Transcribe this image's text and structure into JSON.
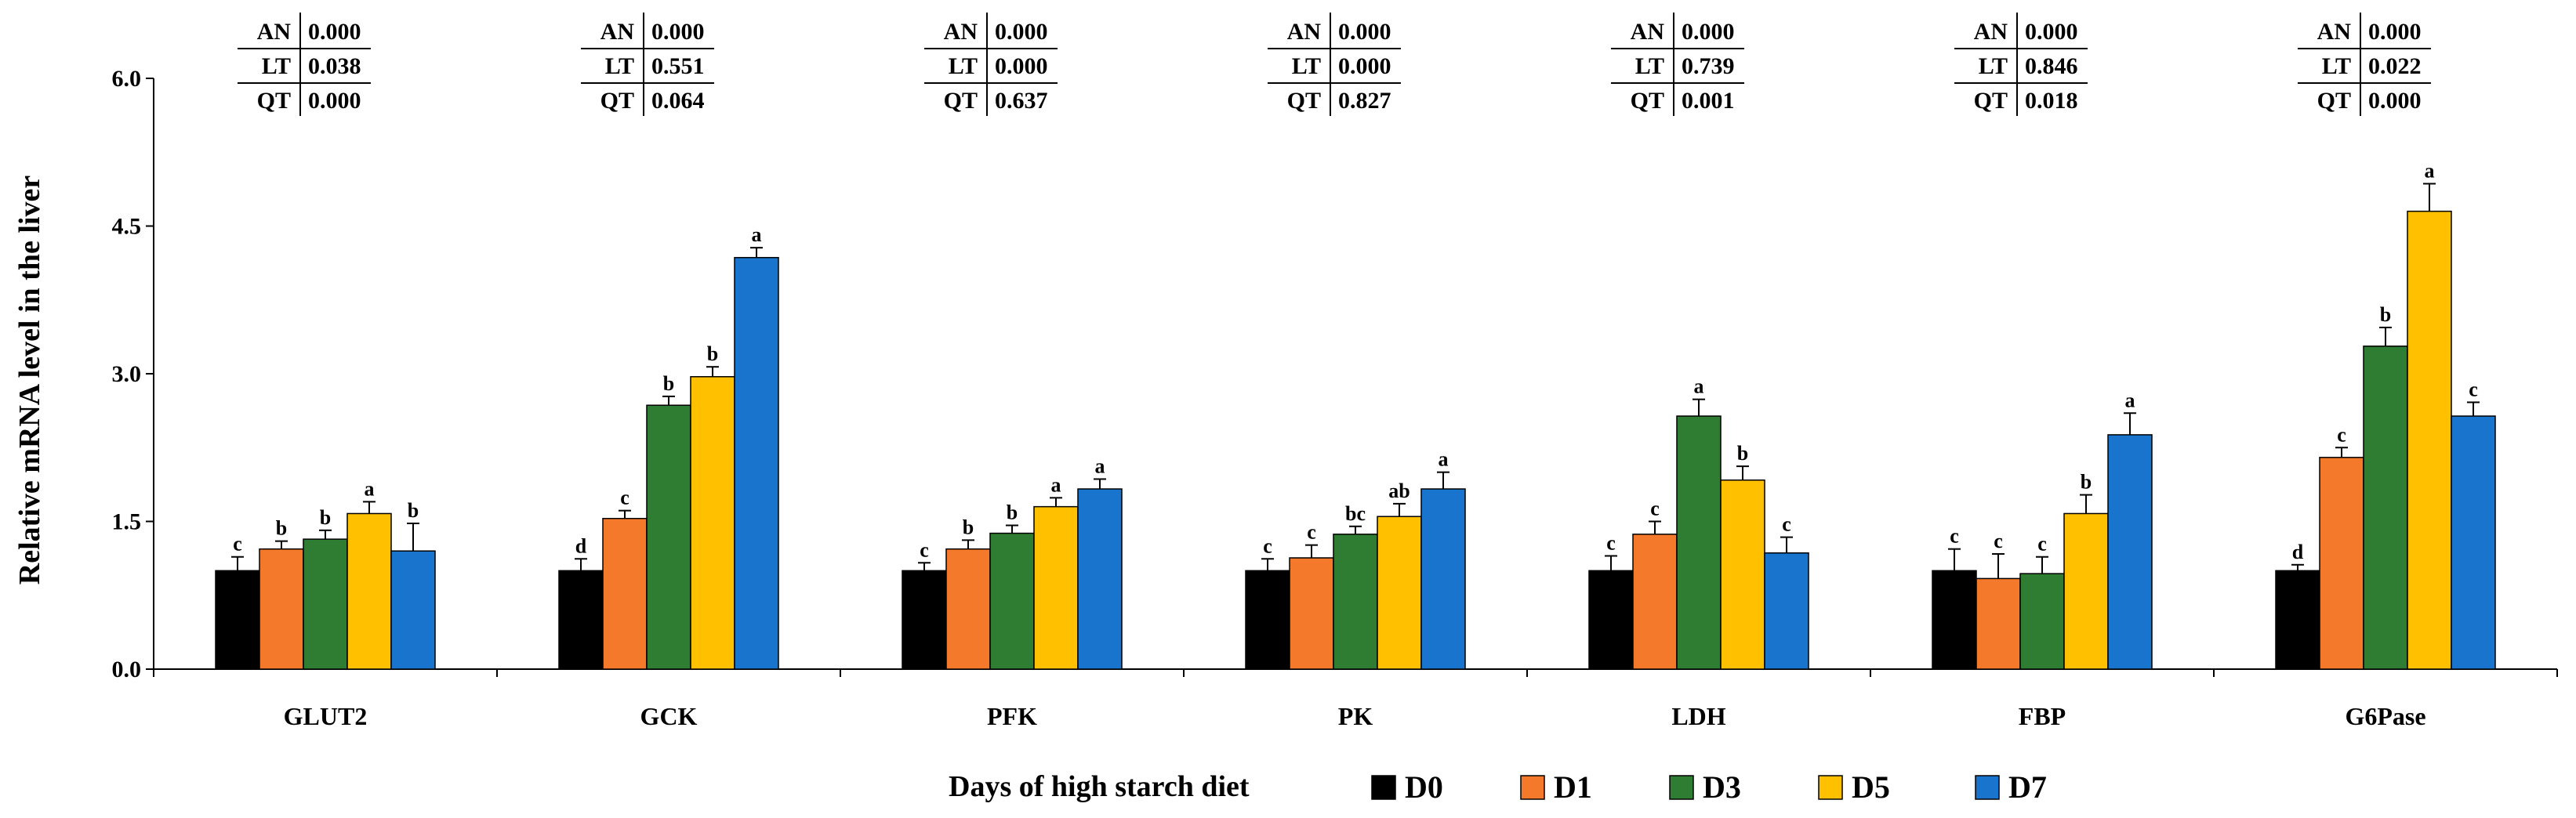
{
  "chart_data": {
    "type": "bar",
    "title": "",
    "ylabel": "Relative mRNA level  in the liver",
    "xlabel": "",
    "ylim": [
      0,
      6.0
    ],
    "yticks": [
      "0.0",
      "1.5",
      "3.0",
      "4.5",
      "6.0"
    ],
    "ytick_values": [
      0,
      1.5,
      3.0,
      4.5,
      6.0
    ],
    "grid": false,
    "legend_title": "Days of high starch diet",
    "legend_position": "bottom",
    "categories": [
      "GLUT2",
      "GCK",
      "PFK",
      "PK",
      "LDH",
      "FBP",
      "G6Pase"
    ],
    "series": [
      {
        "name": "D0",
        "color": "#000000",
        "values": [
          1.0,
          1.0,
          1.0,
          1.0,
          1.0,
          1.0,
          1.0
        ],
        "errors": [
          0.14,
          0.12,
          0.08,
          0.12,
          0.15,
          0.22,
          0.06
        ],
        "letters": [
          "c",
          "d",
          "c",
          "c",
          "c",
          "c",
          "d"
        ]
      },
      {
        "name": "D1",
        "color": "#F5792A",
        "values": [
          1.22,
          1.53,
          1.22,
          1.13,
          1.37,
          0.92,
          2.15
        ],
        "errors": [
          0.08,
          0.08,
          0.09,
          0.13,
          0.13,
          0.25,
          0.1
        ],
        "letters": [
          "b",
          "c",
          "b",
          "c",
          "c",
          "c",
          "c"
        ]
      },
      {
        "name": "D3",
        "color": "#2E7D32",
        "values": [
          1.32,
          2.68,
          1.38,
          1.37,
          2.57,
          0.97,
          3.28
        ],
        "errors": [
          0.09,
          0.09,
          0.08,
          0.08,
          0.17,
          0.17,
          0.19
        ],
        "letters": [
          "b",
          "b",
          "b",
          "bc",
          "a",
          "c",
          "b"
        ]
      },
      {
        "name": "D5",
        "color": "#FFC000",
        "values": [
          1.58,
          2.97,
          1.65,
          1.55,
          1.92,
          1.58,
          4.65
        ],
        "errors": [
          0.12,
          0.1,
          0.09,
          0.13,
          0.14,
          0.19,
          0.28
        ],
        "letters": [
          "a",
          "b",
          "a",
          "ab",
          "b",
          "b",
          "a"
        ]
      },
      {
        "name": "D7",
        "color": "#1874CD",
        "values": [
          1.2,
          4.18,
          1.83,
          1.83,
          1.18,
          2.38,
          2.57
        ],
        "errors": [
          0.28,
          0.1,
          0.1,
          0.17,
          0.16,
          0.22,
          0.14
        ],
        "letters": [
          "b",
          "a",
          "a",
          "a",
          "c",
          "a",
          "c"
        ]
      }
    ],
    "stat_tables": [
      {
        "rows": [
          {
            "label": "AN",
            "value": "0.000"
          },
          {
            "label": "LT",
            "value": "0.038"
          },
          {
            "label": "QT",
            "value": "0.000"
          }
        ]
      },
      {
        "rows": [
          {
            "label": "AN",
            "value": "0.000"
          },
          {
            "label": "LT",
            "value": "0.551"
          },
          {
            "label": "QT",
            "value": "0.064"
          }
        ]
      },
      {
        "rows": [
          {
            "label": "AN",
            "value": "0.000"
          },
          {
            "label": "LT",
            "value": "0.000"
          },
          {
            "label": "QT",
            "value": "0.637"
          }
        ]
      },
      {
        "rows": [
          {
            "label": "AN",
            "value": "0.000"
          },
          {
            "label": "LT",
            "value": "0.000"
          },
          {
            "label": "QT",
            "value": "0.827"
          }
        ]
      },
      {
        "rows": [
          {
            "label": "AN",
            "value": "0.000"
          },
          {
            "label": "LT",
            "value": "0.739"
          },
          {
            "label": "QT",
            "value": "0.001"
          }
        ]
      },
      {
        "rows": [
          {
            "label": "AN",
            "value": "0.000"
          },
          {
            "label": "LT",
            "value": "0.846"
          },
          {
            "label": "QT",
            "value": "0.018"
          }
        ]
      },
      {
        "rows": [
          {
            "label": "AN",
            "value": "0.000"
          },
          {
            "label": "LT",
            "value": "0.022"
          },
          {
            "label": "QT",
            "value": "0.000"
          }
        ]
      }
    ]
  }
}
